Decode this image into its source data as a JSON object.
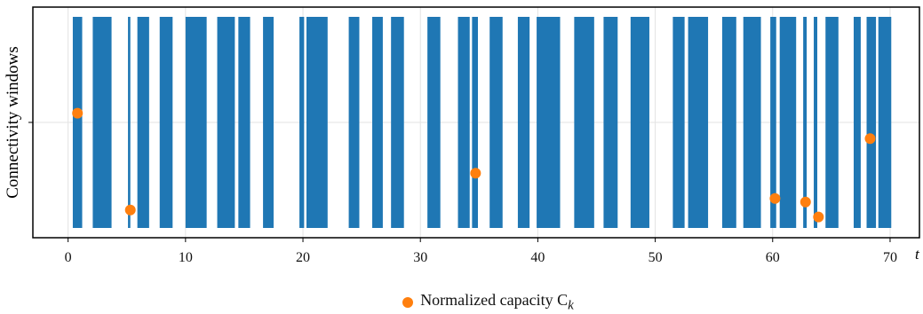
{
  "chart_data": {
    "type": "bar",
    "title": "",
    "xlabel": "t",
    "ylabel": "Connectivity windows",
    "xlim": [
      -3,
      72.5
    ],
    "xticks": [
      0,
      10,
      20,
      30,
      40,
      50,
      60,
      70
    ],
    "grid": true,
    "legend_position": "bottom-center",
    "colors": {
      "windows": "#1f77b4",
      "capacity": "#ff7f0e"
    },
    "windows": [
      [
        0.4,
        1.2
      ],
      [
        2.1,
        3.7
      ],
      [
        5.1,
        5.3
      ],
      [
        5.9,
        6.9
      ],
      [
        7.8,
        8.9
      ],
      [
        10.0,
        11.8
      ],
      [
        12.7,
        14.2
      ],
      [
        14.5,
        15.5
      ],
      [
        16.6,
        17.5
      ],
      [
        19.7,
        20.1
      ],
      [
        20.3,
        22.1
      ],
      [
        23.9,
        24.8
      ],
      [
        25.9,
        26.8
      ],
      [
        27.5,
        28.6
      ],
      [
        30.6,
        31.7
      ],
      [
        33.2,
        34.2
      ],
      [
        34.4,
        34.9
      ],
      [
        35.9,
        37.0
      ],
      [
        38.3,
        39.3
      ],
      [
        39.9,
        41.9
      ],
      [
        43.1,
        44.8
      ],
      [
        45.6,
        46.8
      ],
      [
        47.9,
        49.5
      ],
      [
        51.5,
        52.5
      ],
      [
        52.8,
        54.5
      ],
      [
        55.7,
        56.9
      ],
      [
        57.5,
        59.0
      ],
      [
        59.8,
        60.3
      ],
      [
        60.6,
        62.0
      ],
      [
        62.6,
        62.9
      ],
      [
        63.5,
        63.8
      ],
      [
        64.5,
        65.6
      ],
      [
        66.9,
        67.5
      ],
      [
        68.0,
        68.8
      ],
      [
        69.0,
        70.1
      ]
    ],
    "capacity": {
      "name": "Normalized capacity C",
      "name_subscript": "k",
      "points": [
        {
          "x": 0.8,
          "y": 0.54
        },
        {
          "x": 5.3,
          "y": 0.12
        },
        {
          "x": 34.7,
          "y": 0.28
        },
        {
          "x": 60.2,
          "y": 0.17
        },
        {
          "x": 62.8,
          "y": 0.155
        },
        {
          "x": 63.9,
          "y": 0.09
        },
        {
          "x": 68.3,
          "y": 0.43
        }
      ]
    },
    "ylim": [
      0,
      1
    ]
  }
}
